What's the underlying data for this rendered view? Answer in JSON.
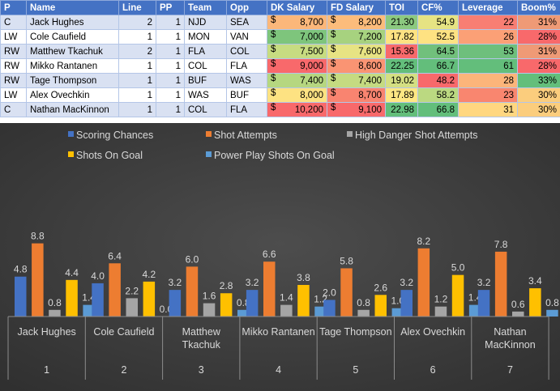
{
  "table": {
    "headers": [
      "P",
      "Name",
      "Line",
      "PP",
      "Team",
      "Opp",
      "DK Salary",
      "FD Salary",
      "TOI",
      "CF%",
      "Leverage",
      "Boom%"
    ],
    "currency": "$",
    "rows": [
      {
        "pos": "C",
        "name": "Jack Hughes",
        "line": "2",
        "pp": "1",
        "team": "NJD",
        "opp": "SEA",
        "dk": "8,700",
        "fd": "8,200",
        "toi": "21.30",
        "cf": "54.9",
        "lev": "22",
        "boom": "31%",
        "colors": {
          "dk": "#fbb77a",
          "fd": "#fcbc7b",
          "toi": "#8cc97f",
          "cf": "#e6e383",
          "lev": "#f87e73",
          "boom": "#ef9a76"
        }
      },
      {
        "pos": "LW",
        "name": "Cole Caufield",
        "line": "1",
        "pp": "1",
        "team": "MON",
        "opp": "VAN",
        "dk": "7,000",
        "fd": "7,200",
        "toi": "17.82",
        "cf": "52.5",
        "lev": "26",
        "boom": "28%",
        "colors": {
          "dk": "#7ec57c",
          "fd": "#a7d27f",
          "toi": "#fde282",
          "cf": "#fee282",
          "lev": "#fba076",
          "boom": "#f8696b"
        }
      },
      {
        "pos": "RW",
        "name": "Matthew Tkachuk",
        "line": "2",
        "pp": "1",
        "team": "FLA",
        "opp": "COL",
        "dk": "7,500",
        "fd": "7,600",
        "toi": "15.36",
        "cf": "64.5",
        "lev": "53",
        "boom": "31%",
        "colors": {
          "dk": "#c7dc81",
          "fd": "#e7e383",
          "toi": "#f8696b",
          "cf": "#71c07c",
          "lev": "#6ebf7c",
          "boom": "#ef9a76"
        }
      },
      {
        "pos": "RW",
        "name": "Mikko Rantanen",
        "line": "1",
        "pp": "1",
        "team": "COL",
        "opp": "FLA",
        "dk": "9,000",
        "fd": "8,600",
        "toi": "22.25",
        "cf": "66.7",
        "lev": "61",
        "boom": "28%",
        "colors": {
          "dk": "#f8696b",
          "fd": "#fa9473",
          "toi": "#63be7b",
          "cf": "#63be7b",
          "lev": "#63be7b",
          "boom": "#f8696b"
        }
      },
      {
        "pos": "RW",
        "name": "Tage Thompson",
        "line": "1",
        "pp": "1",
        "team": "BUF",
        "opp": "WAS",
        "dk": "7,400",
        "fd": "7,400",
        "toi": "19.02",
        "cf": "48.2",
        "lev": "28",
        "boom": "33%",
        "colors": {
          "dk": "#b6d780",
          "fd": "#c5db81",
          "toi": "#d4df82",
          "cf": "#f8696b",
          "lev": "#fcb57a",
          "boom": "#63be7b"
        }
      },
      {
        "pos": "LW",
        "name": "Alex Ovechkin",
        "line": "1",
        "pp": "1",
        "team": "WAS",
        "opp": "BUF",
        "dk": "8,000",
        "fd": "8,700",
        "toi": "17.89",
        "cf": "58.2",
        "lev": "23",
        "boom": "30%",
        "colors": {
          "dk": "#fde282",
          "fd": "#f98470",
          "toi": "#fee783",
          "cf": "#bbd981",
          "lev": "#f9866f",
          "boom": "#fbcd7d"
        }
      },
      {
        "pos": "C",
        "name": "Nathan MacKinnon",
        "line": "1",
        "pp": "1",
        "team": "COL",
        "opp": "FLA",
        "dk": "10,200",
        "fd": "9,100",
        "toi": "22.98",
        "cf": "66.8",
        "lev": "31",
        "boom": "30%",
        "colors": {
          "dk": "#f8696b",
          "fd": "#f8696b",
          "toi": "#63be7b",
          "cf": "#63be7b",
          "lev": "#ffd780",
          "boom": "#fbcd7d"
        }
      }
    ]
  },
  "chart_data": {
    "type": "bar",
    "title": "",
    "categories": [
      {
        "name": "Jack Hughes",
        "number": "1"
      },
      {
        "name": "Cole Caufield",
        "number": "2"
      },
      {
        "name": "Matthew Tkachuk",
        "number": "3"
      },
      {
        "name": "Mikko Rantanen",
        "number": "4"
      },
      {
        "name": "Tage Thompson",
        "number": "5"
      },
      {
        "name": "Alex Ovechkin",
        "number": "6"
      },
      {
        "name": "Nathan MacKinnon",
        "number": "7"
      }
    ],
    "series": [
      {
        "name": "Scoring Chances",
        "color": "#4472c4",
        "values": [
          4.8,
          4.0,
          3.2,
          3.2,
          2.0,
          3.2,
          3.2
        ]
      },
      {
        "name": "Shot Attempts",
        "color": "#ed7d31",
        "values": [
          8.8,
          6.4,
          6.0,
          6.6,
          5.8,
          8.2,
          7.8
        ]
      },
      {
        "name": "High Danger Shot Attempts",
        "color": "#a5a5a5",
        "values": [
          0.8,
          2.2,
          1.6,
          1.4,
          0.8,
          1.2,
          0.6
        ]
      },
      {
        "name": "Shots On Goal",
        "color": "#ffc000",
        "values": [
          4.4,
          4.2,
          2.8,
          3.8,
          2.6,
          5.0,
          3.4
        ]
      },
      {
        "name": "Power Play Shots On Goal",
        "color": "#5b9bd5",
        "values": [
          1.4,
          0.0,
          0.8,
          1.2,
          1.0,
          1.4,
          0.8
        ]
      }
    ],
    "ylim": [
      0,
      10
    ],
    "grid": false,
    "legend": "top",
    "background": "#404040",
    "label_color": "#d9d9d9"
  }
}
